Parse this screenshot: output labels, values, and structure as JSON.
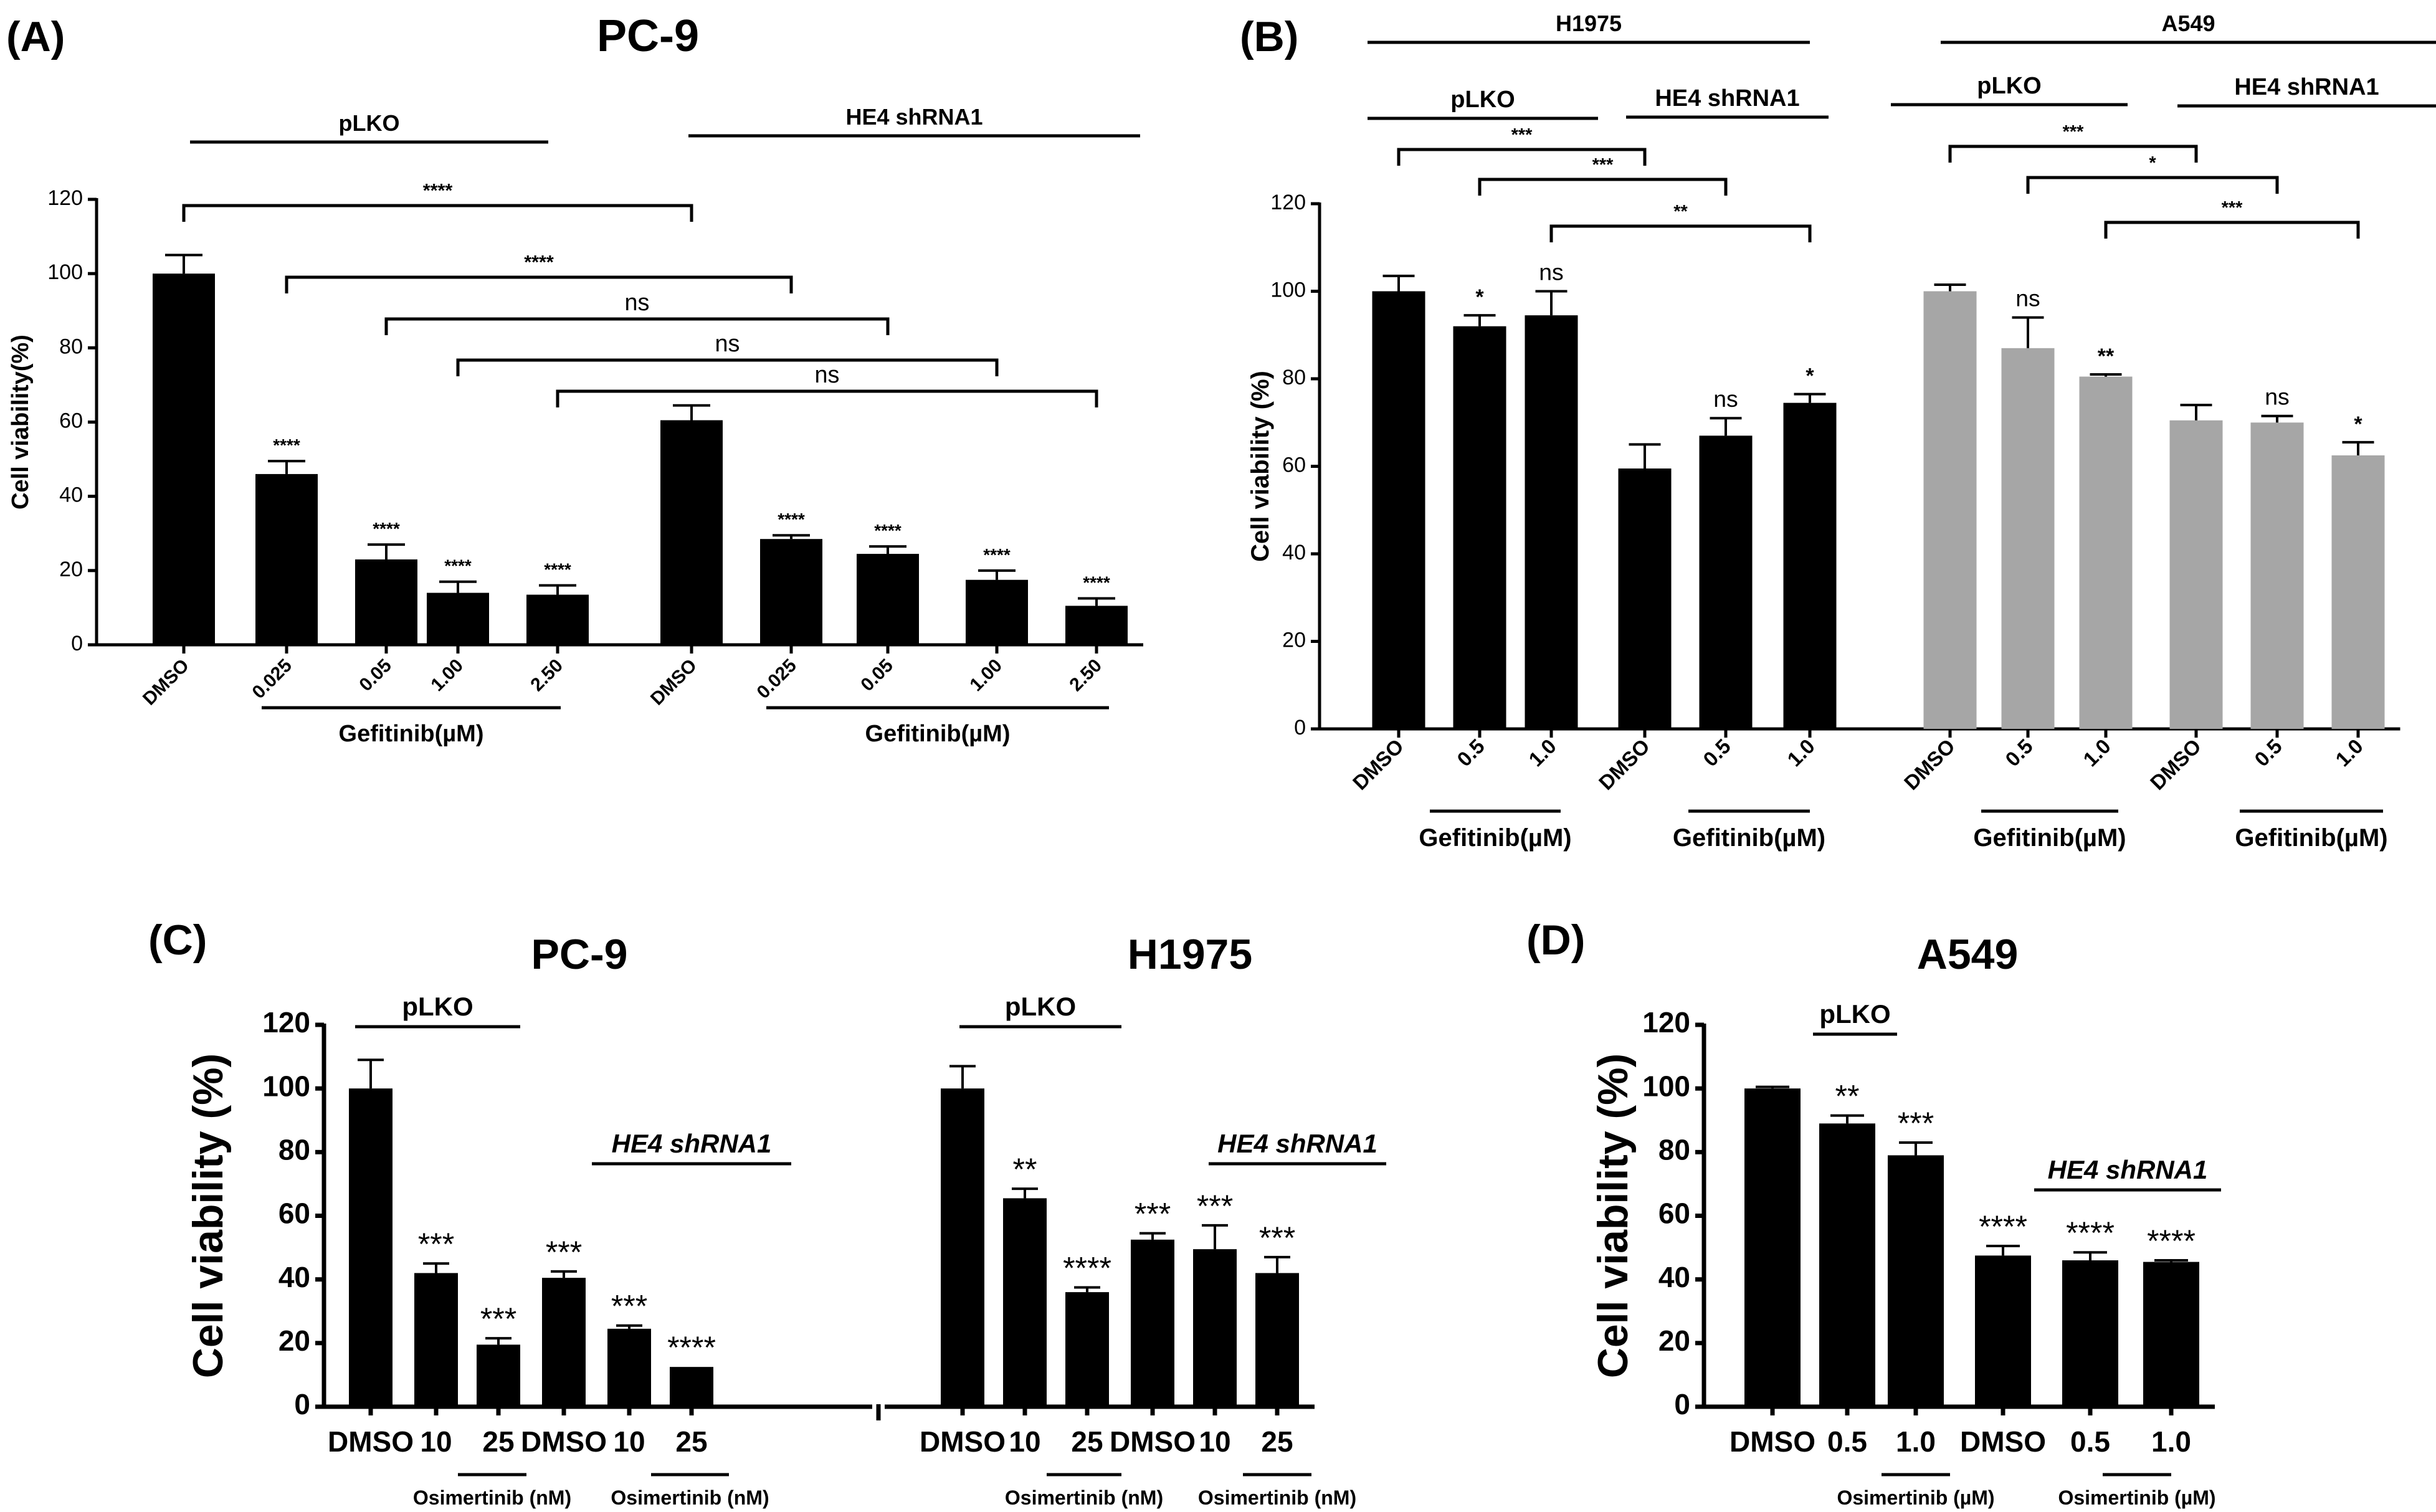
{
  "colors": {
    "black": "#000000",
    "gray": "#a6a6a6"
  },
  "chart_data": [
    {
      "type": "bar",
      "panel_label": "(A)",
      "title": "PC-9",
      "ylabel": "Cell viability(%)",
      "ylim": [
        0,
        120
      ],
      "yticks": [
        "0",
        "20",
        "40",
        "60",
        "80",
        "100",
        "120"
      ],
      "categories": [
        "DMSO",
        "0.025",
        "0.05",
        "1.00",
        "2.50",
        "DMSO",
        "0.025",
        "0.05",
        "1.00",
        "2.50"
      ],
      "values": [
        100,
        46,
        23,
        14,
        13.5,
        60.5,
        28.5,
        24.5,
        17.5,
        10.5
      ],
      "errors": [
        5,
        3.5,
        4,
        3,
        2.5,
        4,
        1,
        2,
        2.5,
        2
      ],
      "bar_colors": [
        "#000000",
        "#000000",
        "#000000",
        "#000000",
        "#000000",
        "#000000",
        "#000000",
        "#000000",
        "#000000",
        "#000000"
      ],
      "stars": [
        "",
        "****",
        "****",
        "****",
        "****",
        "",
        "****",
        "****",
        "****",
        "****"
      ],
      "groups": [
        {
          "label": "pLKO",
          "from": 0,
          "to": 4,
          "position": "top"
        },
        {
          "label": "HE4 shRNA1",
          "from": 5,
          "to": 9,
          "position": "top"
        },
        {
          "label": "Gefitinib(µM)",
          "from": 1,
          "to": 4,
          "position": "bottom"
        },
        {
          "label": "Gefitinib(µM)",
          "from": 6,
          "to": 9,
          "position": "bottom"
        }
      ],
      "brackets": [
        {
          "from": 0,
          "to": 5,
          "label": "****"
        },
        {
          "from": 1,
          "to": 6,
          "label": "****"
        },
        {
          "from": 2,
          "to": 7,
          "label": "ns"
        },
        {
          "from": 3,
          "to": 8,
          "label": "ns"
        },
        {
          "from": 4,
          "to": 9,
          "label": "ns"
        }
      ]
    },
    {
      "type": "bar",
      "panel_label": "(B)",
      "title": "",
      "ylabel": "Cell viability (%)",
      "ylim": [
        0,
        120
      ],
      "yticks": [
        "0",
        "20",
        "40",
        "60",
        "80",
        "100",
        "120"
      ],
      "categories": [
        "DMSO",
        "0.5",
        "1.0",
        "DMSO",
        "0.5",
        "1.0",
        "DMSO",
        "0.5",
        "1.0",
        "DMSO",
        "0.5",
        "1.0"
      ],
      "values": [
        100,
        92,
        94.5,
        59.5,
        67,
        74.5,
        100,
        87,
        80.5,
        70.5,
        70,
        62.5
      ],
      "errors": [
        3.5,
        2.5,
        5.5,
        5.5,
        4,
        2,
        1.5,
        7,
        0.5,
        3.5,
        1.5,
        3
      ],
      "bar_colors": [
        "#000000",
        "#000000",
        "#000000",
        "#000000",
        "#000000",
        "#000000",
        "#a6a6a6",
        "#a6a6a6",
        "#a6a6a6",
        "#a6a6a6",
        "#a6a6a6",
        "#a6a6a6"
      ],
      "stars": [
        "",
        "*",
        "ns",
        "",
        "ns",
        "*",
        "",
        "ns",
        "**",
        "",
        "ns",
        "*"
      ],
      "groups": [
        {
          "label": "H1975",
          "from": 0,
          "to": 5,
          "position": "top"
        },
        {
          "label": "A549",
          "from": 6,
          "to": 11,
          "position": "top"
        },
        {
          "label": "pLKO",
          "from": 0,
          "to": 2,
          "position": "top"
        },
        {
          "label": "HE4 shRNA1",
          "from": 3,
          "to": 5,
          "position": "top"
        },
        {
          "label": "pLKO",
          "from": 6,
          "to": 8,
          "position": "top"
        },
        {
          "label": "HE4 shRNA1",
          "from": 9,
          "to": 11,
          "position": "top"
        },
        {
          "label": "Gefitinib(µM)",
          "from": 1,
          "to": 2,
          "position": "bottom"
        },
        {
          "label": "Gefitinib(µM)",
          "from": 4,
          "to": 5,
          "position": "bottom"
        },
        {
          "label": "Gefitinib(µM)",
          "from": 7,
          "to": 8,
          "position": "bottom"
        },
        {
          "label": "Gefitinib(µM)",
          "from": 10,
          "to": 11,
          "position": "bottom"
        }
      ],
      "brackets": [
        {
          "from": 0,
          "to": 3,
          "label": "***"
        },
        {
          "from": 1,
          "to": 4,
          "label": "***"
        },
        {
          "from": 2,
          "to": 5,
          "label": "**"
        },
        {
          "from": 6,
          "to": 9,
          "label": "***"
        },
        {
          "from": 7,
          "to": 10,
          "label": "*"
        },
        {
          "from": 8,
          "to": 11,
          "label": "***"
        }
      ]
    },
    {
      "type": "bar",
      "panel_label": "(C)",
      "titles": [
        "PC-9",
        "H1975"
      ],
      "ylabel": "Cell viability (%)",
      "ylim": [
        0,
        120
      ],
      "yticks": [
        "0",
        "20",
        "40",
        "60",
        "80",
        "100",
        "120"
      ],
      "categories": [
        "DMSO",
        "10",
        "25",
        "DMSO",
        "10",
        "25",
        "DMSO",
        "10",
        "25",
        "DMSO",
        "10",
        "25"
      ],
      "values": [
        100,
        42,
        19.5,
        40.5,
        24.5,
        12.5,
        100,
        65.5,
        36,
        52.5,
        49.5,
        42
      ],
      "errors": [
        9,
        3,
        2,
        2,
        1,
        0,
        7,
        3,
        1.5,
        2,
        7.5,
        5
      ],
      "bar_colors": [
        "#000000",
        "#000000",
        "#000000",
        "#000000",
        "#000000",
        "#000000",
        "#000000",
        "#000000",
        "#000000",
        "#000000",
        "#000000",
        "#000000"
      ],
      "stars": [
        "",
        "***",
        "***",
        "***",
        "***",
        "****",
        "",
        "**",
        "****",
        "***",
        "***",
        "***"
      ],
      "groups": [
        {
          "label": "pLKO",
          "from": 0,
          "to": 2,
          "position": "top"
        },
        {
          "label": "HE4 shRNA1",
          "from": 3,
          "to": 5,
          "position": "top"
        },
        {
          "label": "pLKO",
          "from": 6,
          "to": 8,
          "position": "top"
        },
        {
          "label": "HE4 shRNA1",
          "from": 9,
          "to": 11,
          "position": "top"
        },
        {
          "label": "Osimertinib (nM)",
          "from": 1,
          "to": 2,
          "position": "bottom"
        },
        {
          "label": "Osimertinib (nM)",
          "from": 4,
          "to": 5,
          "position": "bottom"
        },
        {
          "label": "Osimertinib (nM)",
          "from": 7,
          "to": 8,
          "position": "bottom"
        },
        {
          "label": "Osimertinib (nM)",
          "from": 10,
          "to": 11,
          "position": "bottom"
        }
      ],
      "brackets": []
    },
    {
      "type": "bar",
      "panel_label": "(D)",
      "title": "A549",
      "ylabel": "Cell viability (%)",
      "ylim": [
        0,
        120
      ],
      "yticks": [
        "0",
        "20",
        "40",
        "60",
        "80",
        "100",
        "120"
      ],
      "categories": [
        "DMSO",
        "0.5",
        "1.0",
        "DMSO",
        "0.5",
        "1.0"
      ],
      "values": [
        100,
        89,
        79,
        47.5,
        46,
        45.5
      ],
      "errors": [
        0.5,
        2.5,
        4,
        3,
        2.5,
        0.5
      ],
      "bar_colors": [
        "#000000",
        "#000000",
        "#000000",
        "#000000",
        "#000000",
        "#000000"
      ],
      "stars": [
        "",
        "**",
        "***",
        "****",
        "****",
        "****"
      ],
      "groups": [
        {
          "label": "pLKO",
          "from": 0,
          "to": 2,
          "position": "top"
        },
        {
          "label": "HE4 shRNA1",
          "from": 3,
          "to": 5,
          "position": "top"
        },
        {
          "label": "Osimertinib (µM)",
          "from": 1,
          "to": 2,
          "position": "bottom"
        },
        {
          "label": "Osimertinib (µM)",
          "from": 4,
          "to": 5,
          "position": "bottom"
        }
      ],
      "brackets": []
    }
  ]
}
